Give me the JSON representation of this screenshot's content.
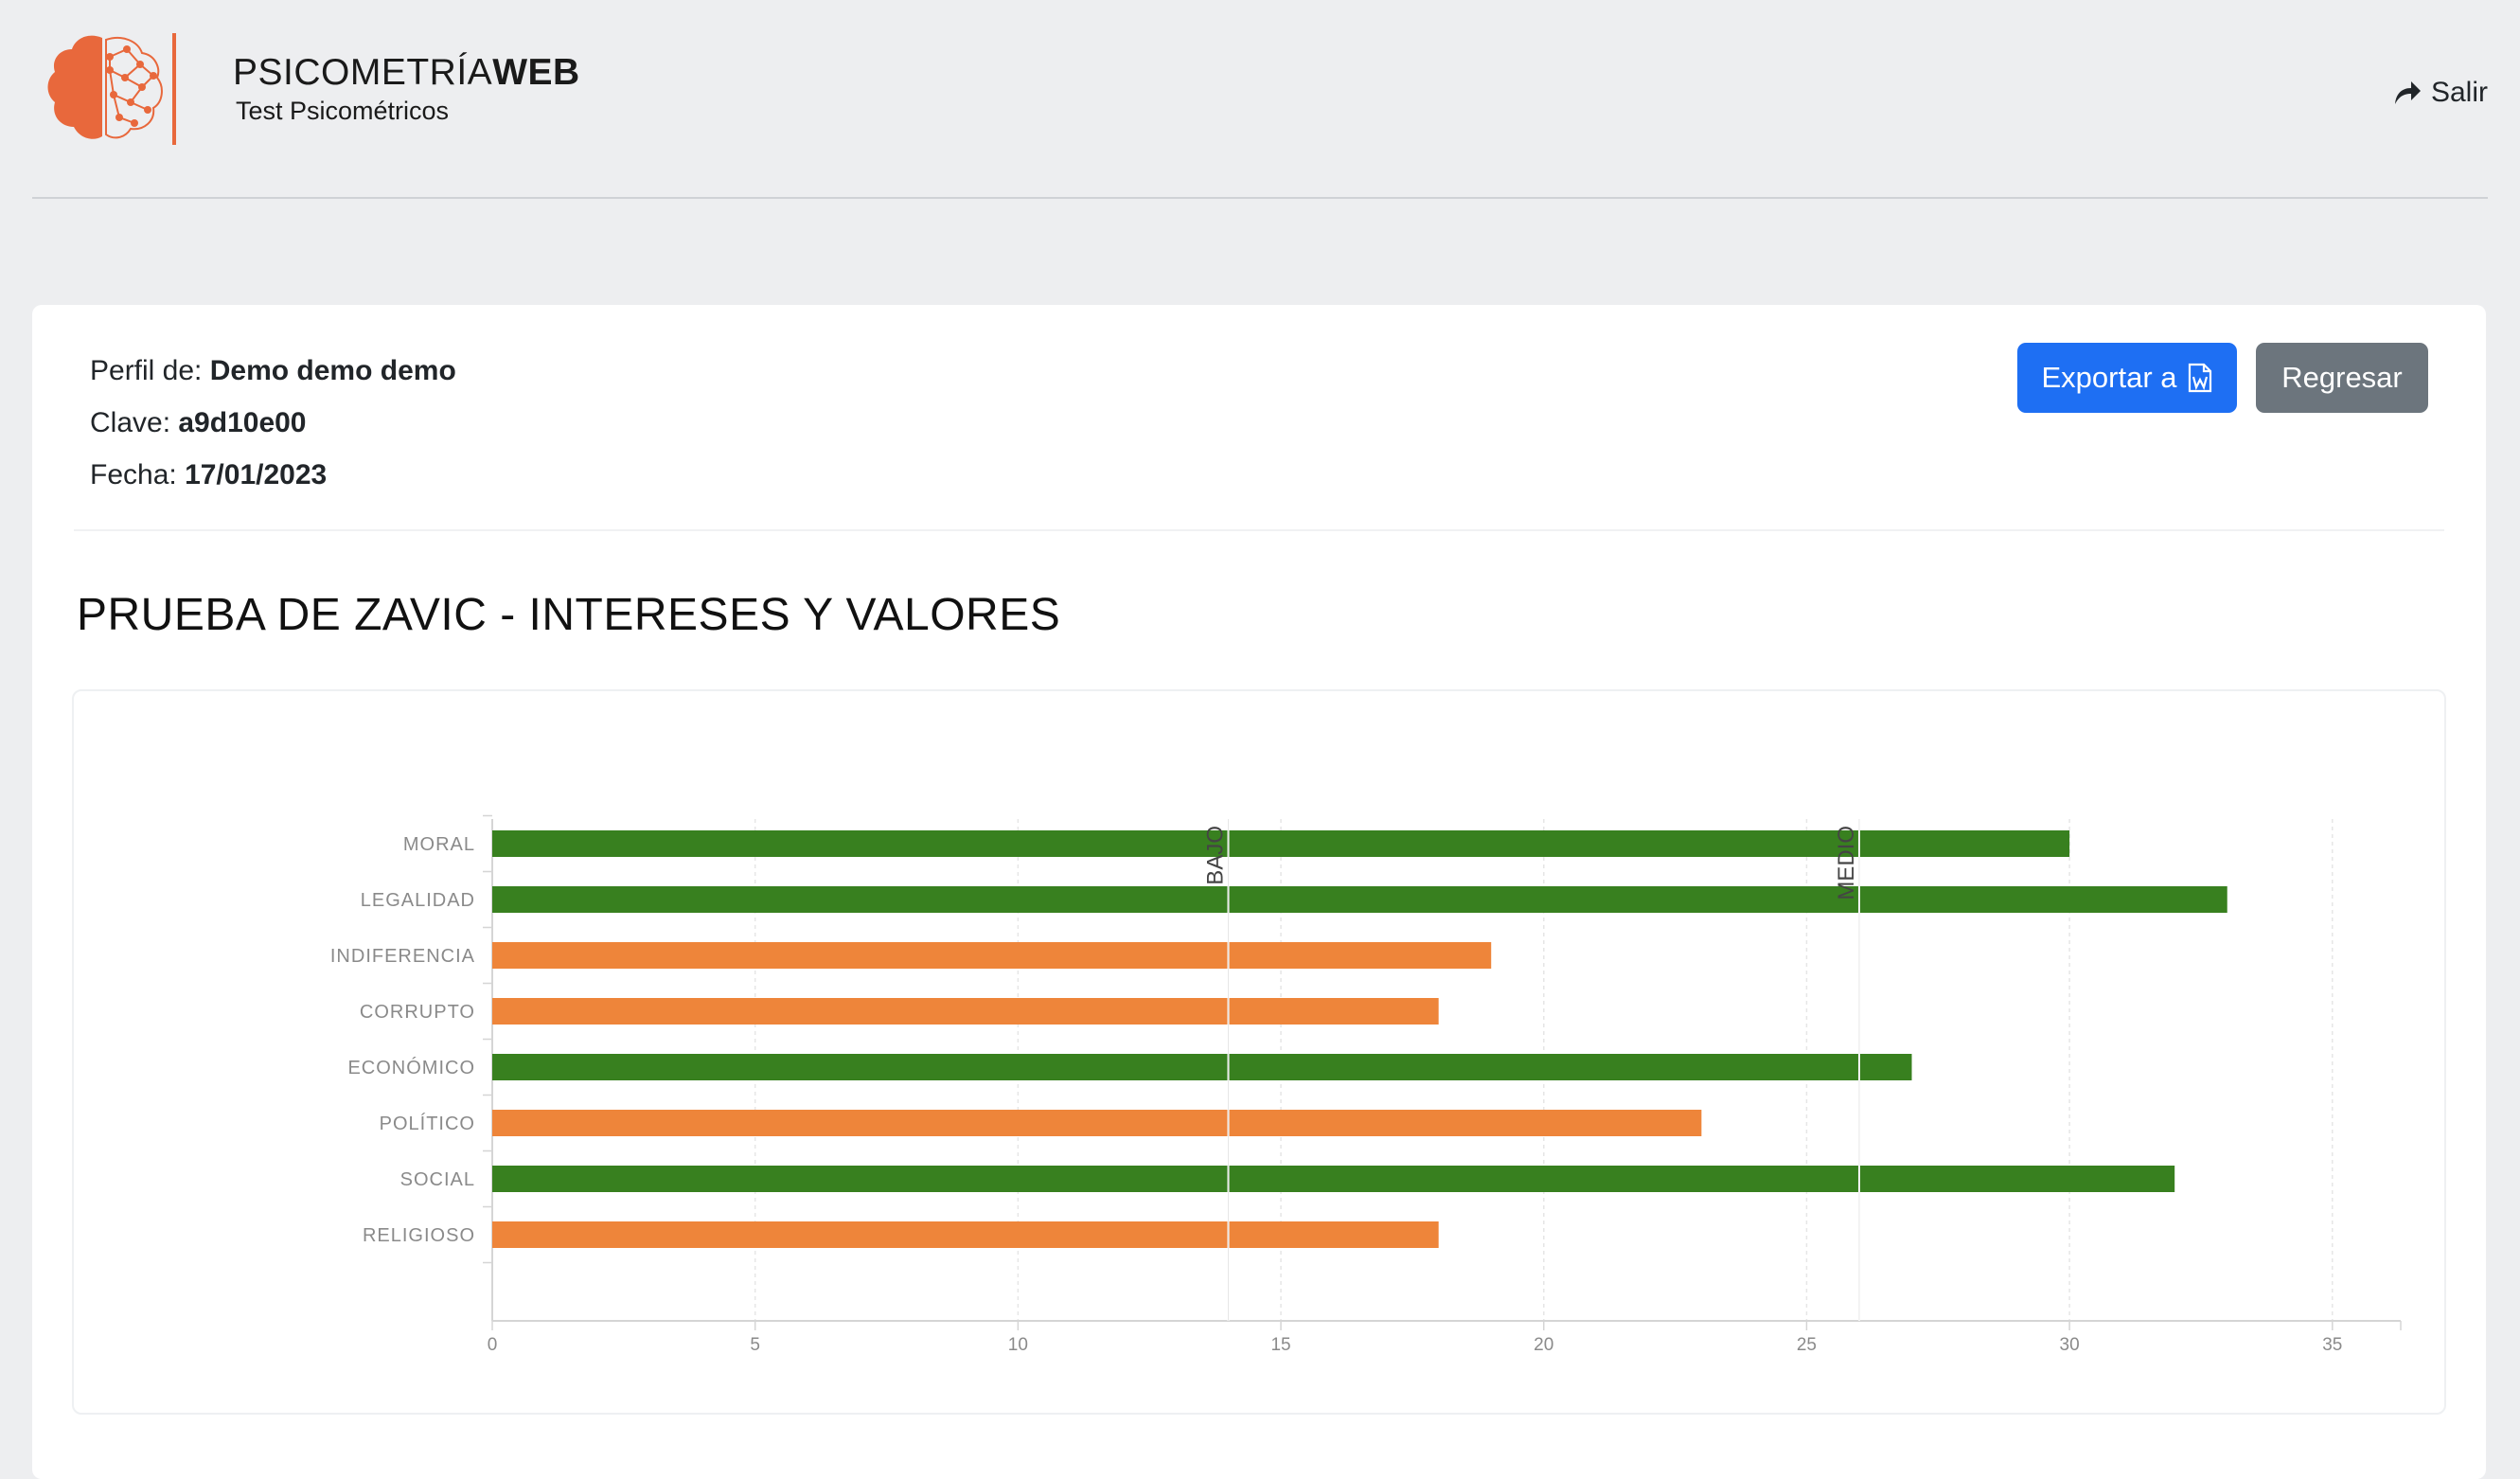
{
  "header": {
    "brand_regular": "PSICOMETRÍA",
    "brand_bold": "WEB",
    "subtitle": "Test Psicométricos",
    "logout_label": "Salir",
    "logout_icon": "share-arrow-icon",
    "logo_icon": "brain-network-icon",
    "accent_color": "#e8683c"
  },
  "profile": {
    "profile_label": "Perfil de: ",
    "profile_value": "Demo demo demo",
    "key_label": "Clave: ",
    "key_value": "a9d10e00",
    "date_label": "Fecha: ",
    "date_value": "17/01/2023"
  },
  "actions": {
    "export_label": "Exportar a",
    "export_icon": "word-file-icon",
    "back_label": "Regresar"
  },
  "section_title": "PRUEBA DE ZAVIC - INTERESES Y VALORES",
  "chart_data": {
    "type": "bar",
    "orientation": "horizontal",
    "categories": [
      "MORAL",
      "LEGALIDAD",
      "INDIFERENCIA",
      "CORRUPTO",
      "ECONÓMICO",
      "POLÍTICO",
      "SOCIAL",
      "RELIGIOSO"
    ],
    "values": [
      30,
      33,
      19,
      18,
      27,
      23,
      32,
      18
    ],
    "bar_colors": [
      "#38801f",
      "#38801f",
      "#ee853a",
      "#ee853a",
      "#38801f",
      "#ee853a",
      "#38801f",
      "#ee853a"
    ],
    "xlim": [
      0,
      36.3
    ],
    "xticks": [
      0,
      5,
      10,
      15,
      20,
      25,
      30,
      35
    ],
    "reference_lines": [
      {
        "label": "BAJO",
        "value": 14
      },
      {
        "label": "MEDIO",
        "value": 26
      }
    ],
    "grid": true,
    "legend": "none"
  }
}
